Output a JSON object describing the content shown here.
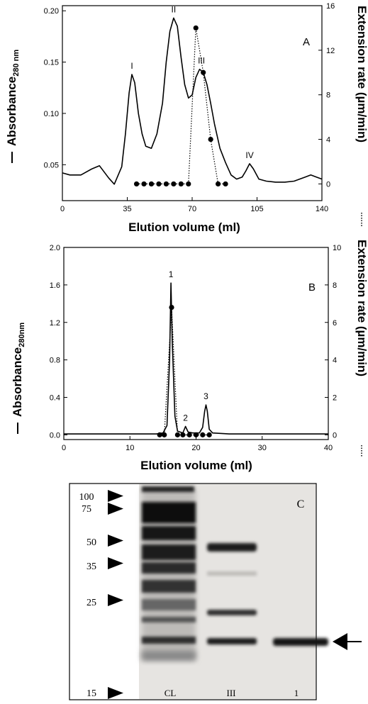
{
  "chart_data": [
    {
      "panel_label": "A",
      "type": "line",
      "xlabel": "Elution volume (ml)",
      "ylabel_left": "Absorbance",
      "ylabel_left_sub": "280 nm",
      "ylabel_right": "Extension rate (µm/min)",
      "xlim": [
        0,
        140
      ],
      "ylim_left": [
        0.015,
        0.205
      ],
      "ylim_right": [
        -1.5,
        16
      ],
      "xticks": [
        "0",
        "35",
        "70",
        "105",
        "140"
      ],
      "yticks_left": [
        "0.05",
        "0.10",
        "0.15",
        "0.20"
      ],
      "yticks_right": [
        "0",
        "4",
        "8",
        "12",
        "16"
      ],
      "peak_labels": [
        {
          "label": "I",
          "x": 37.5,
          "y": 0.138
        },
        {
          "label": "II",
          "x": 60,
          "y": 0.193
        },
        {
          "label": "III",
          "x": 75,
          "y": 0.143
        },
        {
          "label": "IV",
          "x": 101,
          "y": 0.051
        }
      ],
      "series": [
        {
          "style": "solid",
          "axis": "left",
          "x": [
            0,
            4,
            10,
            16,
            20,
            25,
            28,
            32,
            34,
            36,
            37.5,
            39,
            41,
            43,
            45,
            48,
            51,
            54,
            56,
            58,
            60,
            62,
            64,
            66,
            68,
            70,
            72,
            74,
            76,
            78,
            80,
            82,
            85,
            88,
            91,
            94,
            97,
            99,
            101,
            103,
            106,
            110,
            115,
            120,
            125,
            128,
            131,
            134,
            137,
            140
          ],
          "y": [
            0.042,
            0.04,
            0.04,
            0.046,
            0.049,
            0.037,
            0.031,
            0.048,
            0.08,
            0.12,
            0.138,
            0.13,
            0.1,
            0.08,
            0.068,
            0.066,
            0.08,
            0.11,
            0.15,
            0.18,
            0.193,
            0.185,
            0.155,
            0.128,
            0.115,
            0.118,
            0.135,
            0.143,
            0.14,
            0.128,
            0.11,
            0.09,
            0.066,
            0.052,
            0.04,
            0.036,
            0.038,
            0.044,
            0.051,
            0.046,
            0.036,
            0.034,
            0.033,
            0.033,
            0.034,
            0.036,
            0.038,
            0.04,
            0.038,
            0.036
          ]
        },
        {
          "style": "dotted",
          "axis": "right",
          "x": [
            40,
            44,
            48,
            52,
            56,
            60,
            64,
            68,
            72,
            76,
            80,
            84,
            88
          ],
          "y": [
            0,
            0,
            0,
            0,
            0,
            0,
            0,
            0,
            14,
            10,
            4,
            0,
            0
          ]
        }
      ]
    },
    {
      "panel_label": "B",
      "type": "line",
      "xlabel": "Elution volume (ml)",
      "ylabel_left": "Absorbance",
      "ylabel_left_sub": "280nm",
      "ylabel_right": "Extension rate (µm/min)",
      "xlim": [
        0,
        40
      ],
      "ylim_left": [
        -0.05,
        2.0
      ],
      "ylim_right": [
        -0.25,
        10
      ],
      "xticks": [
        "0",
        "10",
        "20",
        "30",
        "40"
      ],
      "yticks_left": [
        "0.0",
        "0.4",
        "0.8",
        "1.2",
        "1.6",
        "2.0"
      ],
      "yticks_right": [
        "0",
        "2",
        "4",
        "6",
        "8",
        "10"
      ],
      "peak_labels": [
        {
          "label": "1",
          "x": 16.2,
          "y": 1.62
        },
        {
          "label": "2",
          "x": 18.4,
          "y": 0.09
        },
        {
          "label": "3",
          "x": 21.5,
          "y": 0.32
        }
      ],
      "series": [
        {
          "style": "solid",
          "axis": "left",
          "x": [
            0,
            14,
            15,
            15.6,
            16,
            16.2,
            16.4,
            16.8,
            17.2,
            18,
            18.4,
            18.8,
            19.5,
            20.5,
            21,
            21.3,
            21.5,
            21.7,
            22,
            22.5,
            25,
            30,
            40
          ],
          "y": [
            0.01,
            0.01,
            0.02,
            0.1,
            0.8,
            1.62,
            1.0,
            0.2,
            0.04,
            0.02,
            0.09,
            0.03,
            0.02,
            0.02,
            0.08,
            0.25,
            0.32,
            0.25,
            0.06,
            0.02,
            0.01,
            0.01,
            0.01
          ]
        },
        {
          "style": "dotted",
          "axis": "right",
          "x": [
            14.5,
            15.2,
            16.3,
            17.2,
            18,
            19,
            20,
            21,
            22
          ],
          "y": [
            0,
            0,
            6.8,
            0,
            0,
            0,
            0,
            0,
            0
          ]
        }
      ]
    }
  ],
  "gel": {
    "panel_label": "C",
    "markers": [
      "100",
      "75",
      "50",
      "35",
      "25",
      "15"
    ],
    "lanes": [
      "CL",
      "III",
      "1"
    ]
  }
}
